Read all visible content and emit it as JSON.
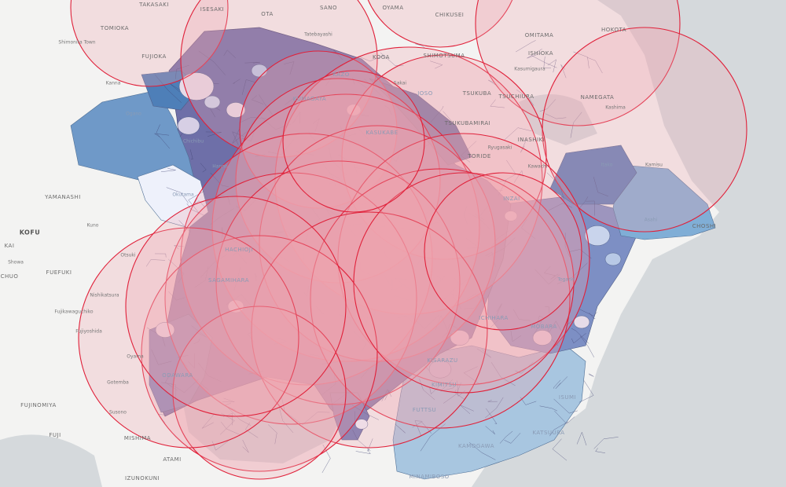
{
  "map": {
    "labels": {
      "takasaki": "TAKASAKI",
      "tomioka": "TOMIOKA",
      "fujioka": "FUJIOKA",
      "shimonita": "Shimonita Town",
      "isesaki": "ISESAKI",
      "ota": "OTA",
      "sano": "SANO",
      "tatebayashi": "Tatebayashi",
      "oyama": "OYAMA",
      "chikusei": "CHIKUSEI",
      "koga": "KOGA",
      "shimotsuma": "SHIMOTSUMA",
      "omitama": "OMITAMA",
      "hokota": "HOKOTA",
      "ishioka": "ISHIOKA",
      "kasumigaura": "Kasumigaura",
      "namegata": "NAMEGATA",
      "kashima": "Kashima",
      "tsukuba": "TSUKUBA",
      "tsuchiura": "TSUCHIURA",
      "tsukubamirai": "TSUKUBAMIRAI",
      "inashiki": "INASHIKI",
      "ryugasaki": "Ryugasaki",
      "toride": "TORIDE",
      "kawachi": "Kawachi",
      "itako": "Itako",
      "kamisu": "Kamisu",
      "choshi": "CHOSHI",
      "asahi": "Asahi",
      "inzai": "INZAI",
      "kanna": "Kanna",
      "yamanashi": "YAMANASHI",
      "kofu": "KOFU",
      "kai": "KAI",
      "showa": "Showa",
      "chuo": "CHUO",
      "fuefuki": "FUEFUKI",
      "otsuki": "Otsuki",
      "nishikatsura": "Nishikatsura",
      "fujikawaguchiko": "Fujikawaguchiko",
      "fujiyoshida": "Fujiyoshida",
      "oyama2": "Oyama",
      "gotemba": "Gotemba",
      "susono": "Susono",
      "fujinomiya": "FUJINOMIYA",
      "fuji": "FUJI",
      "mishima": "MISHIMA",
      "atami": "ATAMI",
      "izunokuni": "IZUNOKUNI",
      "hachioji": "HACHIOJI",
      "sagamihara": "SAGAMIHARA",
      "odawara": "ODAWARA",
      "ichihara": "ICHIHARA",
      "mobara": "MOBARA",
      "kimitsu": "KIMITSU",
      "futtsu": "FUTTSU",
      "isumi": "ISUMI",
      "katsuura": "KATSUURA",
      "kamogawa": "KAMOGAWA",
      "minamiboso": "MINAMIBOSO",
      "kisarazu": "KISARAZU",
      "ogano": "Ogano",
      "chichibu": "Chichibu",
      "hanno": "Hanno",
      "okutama": "Okutama",
      "kuno": "Kuno",
      "kiryu": "Kiryu",
      "kazo": "KAZO",
      "kumagaya": "KUMAGAYA",
      "higashimatsuyama": "HIGASHIMATSUYAMA",
      "kasukabe": "KASUKABE",
      "sakai": "Sakai",
      "joso": "JOSO",
      "tomisato": "Tomisato",
      "sanmu": "SANMU",
      "togane": "Togane"
    },
    "colors": {
      "background": "#f3f3f2",
      "sea": "#d5d9dc",
      "land_base": "#6b83b7",
      "circle_fill": "#f0a7b0",
      "circle_stroke": "#e0213a"
    }
  }
}
